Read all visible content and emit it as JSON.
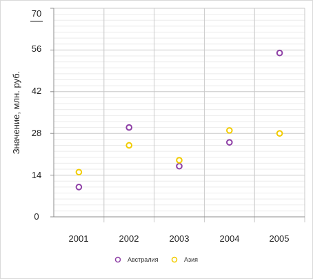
{
  "chart_data": {
    "type": "scatter",
    "title": "",
    "xlabel": "",
    "ylabel": "Значение, млн. руб.",
    "categories": [
      "2001",
      "2002",
      "2003",
      "2004",
      "2005"
    ],
    "ylim": [
      0,
      70
    ],
    "y_ticks": [
      "0",
      "14",
      "28",
      "42",
      "56",
      "70"
    ],
    "grid": true,
    "legend_position": "bottom",
    "series": [
      {
        "name": "Австралия",
        "color": "#8e3fa6",
        "values": [
          10,
          30,
          17,
          25,
          55
        ]
      },
      {
        "name": "Азия",
        "color": "#f2cc00",
        "values": [
          15,
          24,
          19,
          29,
          28
        ]
      }
    ]
  }
}
